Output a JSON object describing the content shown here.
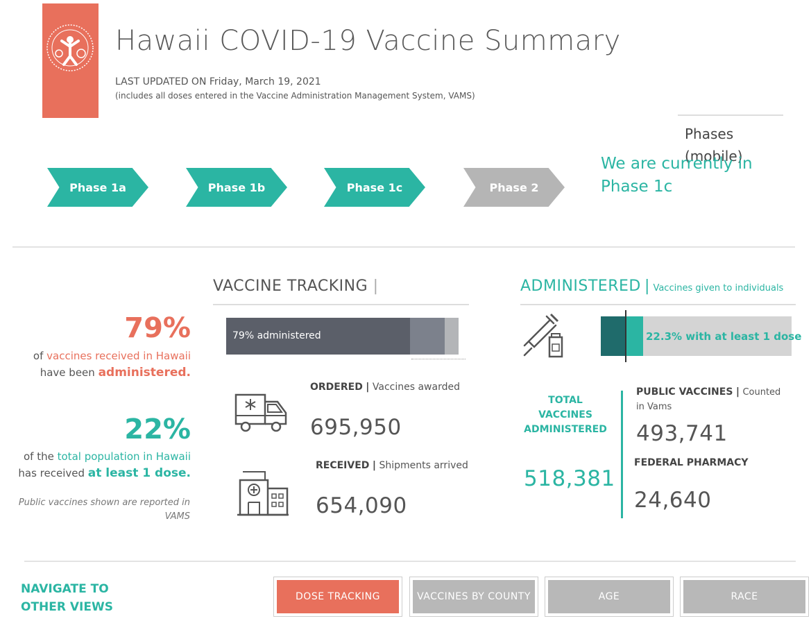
{
  "header": {
    "title": "Hawaii COVID-19 Vaccine Summary",
    "last_updated_label": "LAST UPDATED ON",
    "last_updated_date": "Friday, March 19, 2021",
    "note": "(includes all doses entered in the Vaccine Administration Management System, VAMS)",
    "logo_icon": "hawaii-state-department-of-health-seal"
  },
  "phases": {
    "mobile_label": "Phases (mobile)",
    "current_text": "We are currently in Phase 1c",
    "items": [
      {
        "label": "Phase 1a",
        "status": "active"
      },
      {
        "label": "Phase 1b",
        "status": "active"
      },
      {
        "label": "Phase 1c",
        "status": "active"
      },
      {
        "label": "Phase 2",
        "status": "inactive"
      }
    ]
  },
  "left": {
    "pct1": "79%",
    "line1_pre": "of ",
    "line1_hl": "vaccines received in Hawaii",
    "line2_pre": "have been ",
    "line2_hl": "administered.",
    "pct2": "22%",
    "line3_pre": "of the ",
    "line3_hl": "total population in Hawaii",
    "line4_pre": "has received ",
    "line4_hl": "at least 1 dose.",
    "footnote": "Public vaccines shown are reported in VAMS"
  },
  "tracking": {
    "title": "VACCINE TRACKING",
    "bar_label": "79% administered",
    "bar_administered_fraction": 0.79,
    "bar_received_fraction": 0.94,
    "ordered_label": "ORDERED",
    "ordered_desc": "Vaccines awarded",
    "ordered_value": "695,950",
    "received_label": "RECEIVED",
    "received_desc": "Shipments arrived",
    "received_value": "654,090",
    "ambulance_icon": "ambulance-icon",
    "hospital_icon": "hospital-icon"
  },
  "administered": {
    "title": "ADMINISTERED",
    "subtitle": "Vaccines given to individuals",
    "bar_label": "22.3% with at least 1 dose",
    "bar_fraction": 0.223,
    "total_label": "TOTAL VACCINES ADMINISTERED",
    "total_value": "518,381",
    "public_label": "PUBLIC VACCINES",
    "public_desc": "Counted in Vams",
    "public_value": "493,741",
    "federal_label": "FEDERAL PHARMACY",
    "federal_value": "24,640",
    "syringe_icon": "syringe-vial-icon"
  },
  "nav": {
    "title": "NAVIGATE TO OTHER VIEWS",
    "buttons": [
      {
        "label": "DOSE TRACKING",
        "active": true
      },
      {
        "label": "VACCINES BY COUNTY",
        "active": false
      },
      {
        "label": "AGE",
        "active": false
      },
      {
        "label": "RACE",
        "active": false
      }
    ]
  },
  "colors": {
    "coral": "#e8705c",
    "teal": "#2bb5a3",
    "dark_teal": "#1f6b6b",
    "grey": "#b5b5b5",
    "dark_slate": "#5b5f69"
  }
}
